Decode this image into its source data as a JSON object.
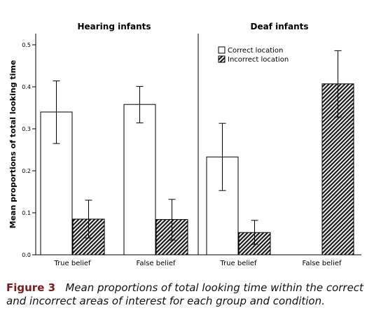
{
  "chart_data": [
    {
      "type": "bar",
      "title": "Hearing infants",
      "ylabel": "Mean proportions of total looking time",
      "xlabel": "",
      "ylim": [
        0,
        0.5
      ],
      "yticks": [
        "0.0",
        "0.1",
        "0.2",
        "0.3",
        "0.4",
        "0.5"
      ],
      "categories": [
        "True belief",
        "False belief"
      ],
      "series": [
        {
          "name": "Correct location",
          "values": [
            0.34,
            0.358
          ],
          "error": [
            [
              0.265,
              0.414
            ],
            [
              0.314,
              0.401
            ]
          ]
        },
        {
          "name": "Incorrect location",
          "values": [
            0.085,
            0.084
          ],
          "error": [
            [
              0.04,
              0.13
            ],
            [
              0.035,
              0.132
            ]
          ]
        }
      ]
    },
    {
      "type": "bar",
      "title": "Deaf infants",
      "ylim": [
        0,
        0.5
      ],
      "categories": [
        "True belief",
        "False belief"
      ],
      "series": [
        {
          "name": "Correct location",
          "values": [
            0.233,
            0.0
          ],
          "error": [
            [
              0.153,
              0.313
            ],
            [
              0.0,
              0.0
            ]
          ]
        },
        {
          "name": "Incorrect location",
          "values": [
            0.053,
            0.407
          ],
          "error": [
            [
              0.025,
              0.082
            ],
            [
              0.328,
              0.486
            ]
          ]
        }
      ],
      "legend": {
        "placement": "top-left",
        "entries": [
          "Correct location",
          "Incorrect location"
        ]
      }
    }
  ],
  "caption": {
    "label": "Figure 3",
    "text": "Mean proportions of total looking time within the correct and incorrect areas of interest for each group and condition."
  },
  "colors": {
    "correct_fill": "#ffffff",
    "incorrect_fill": "#1a1a1a",
    "stroke": "#000000"
  }
}
